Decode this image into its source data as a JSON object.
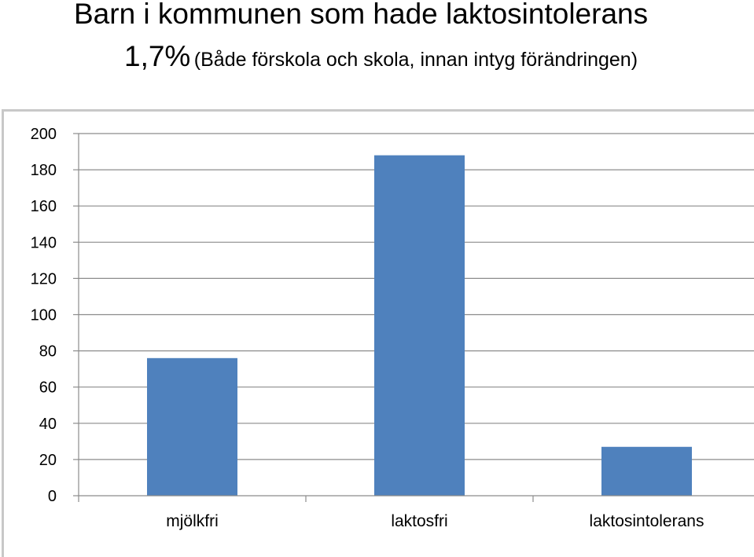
{
  "header": {
    "title": "Barn i kommunen som hade laktosintolerans",
    "subtitle_pct": "1,7%",
    "subtitle_note": "(Både förskola och skola, innan intyg förändringen)"
  },
  "chart_data": {
    "type": "bar",
    "categories": [
      "mjölkfri",
      "laktosfri",
      "laktosintolerans"
    ],
    "values": [
      76,
      188,
      27
    ],
    "ylim": [
      0,
      200
    ],
    "yticks": [
      "0",
      "20",
      "40",
      "60",
      "80",
      "100",
      "120",
      "140",
      "160",
      "180",
      "200"
    ],
    "grid": true,
    "bar_color": "#4f81bd"
  }
}
